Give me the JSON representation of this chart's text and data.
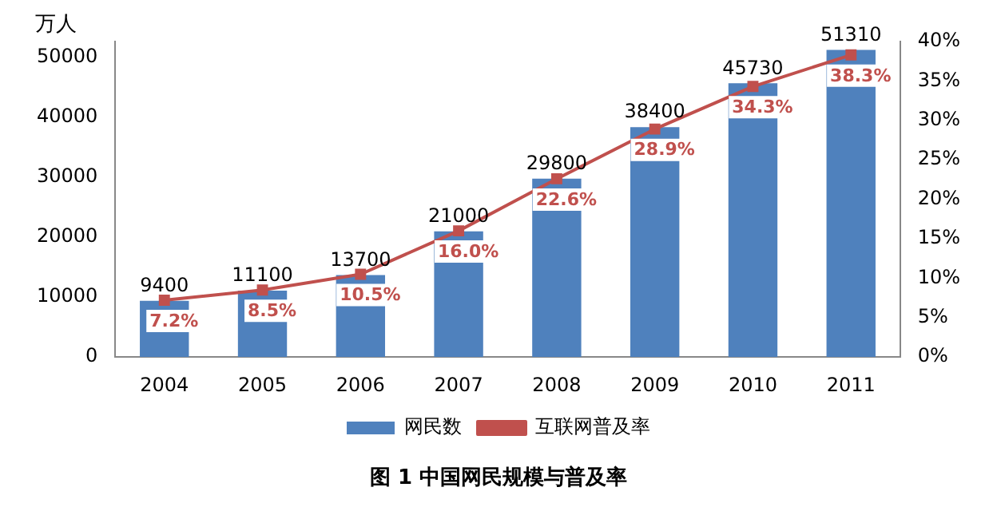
{
  "chart_data": {
    "type": "bar",
    "title": "图 1 中国网民规模与普及率",
    "ylabel": "万人",
    "categories": [
      "2004",
      "2005",
      "2006",
      "2007",
      "2008",
      "2009",
      "2010",
      "2011"
    ],
    "series": [
      {
        "name": "网民数",
        "color": "#4f81bd",
        "values": [
          9400,
          11100,
          13700,
          21000,
          29800,
          38400,
          45730,
          51310
        ],
        "value_labels": [
          "9400",
          "11100",
          "13700",
          "21000",
          "29800",
          "38400",
          "45730",
          "51310"
        ]
      },
      {
        "name": "互联网普及率",
        "type": "line",
        "axis": "y2",
        "color": "#c0504d",
        "marker": "square",
        "values": [
          7.2,
          8.5,
          10.5,
          16.0,
          22.6,
          28.9,
          34.3,
          38.3
        ],
        "value_labels": [
          "7.2%",
          "8.5%",
          "10.5%",
          "16.0%",
          "22.6%",
          "28.9%",
          "34.3%",
          "38.3%"
        ]
      }
    ],
    "ylim": [
      0,
      52700
    ],
    "yticks": [
      0,
      10000,
      20000,
      30000,
      40000,
      50000
    ],
    "y2lim": [
      0,
      40
    ],
    "y2ticks": [
      {
        "value": 0,
        "label": "0%"
      },
      {
        "value": 5,
        "label": "5%"
      },
      {
        "value": 10,
        "label": "10%"
      },
      {
        "value": 15,
        "label": "15%"
      },
      {
        "value": 20,
        "label": "20%"
      },
      {
        "value": 25,
        "label": "25%"
      },
      {
        "value": 30,
        "label": "30%"
      },
      {
        "value": 35,
        "label": "35%"
      },
      {
        "value": 40,
        "label": "40%"
      }
    ],
    "grid": false,
    "legend": "bottom"
  }
}
